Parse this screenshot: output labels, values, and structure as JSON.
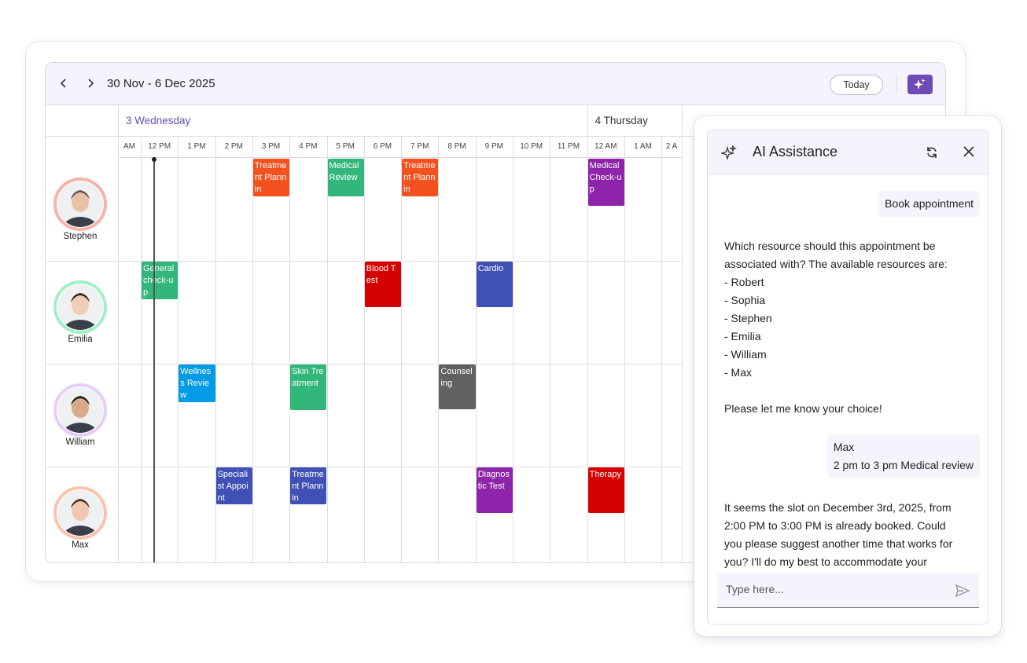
{
  "toolbar": {
    "date_range": "30 Nov - 6 Dec 2025",
    "today_button": "Today"
  },
  "scheduler": {
    "days": [
      "3 Wednesday",
      "4 Thursday"
    ],
    "time_slots": [
      "AM",
      "12 PM",
      "1 PM",
      "2 PM",
      "3 PM",
      "4 PM",
      "5 PM",
      "6 PM",
      "7 PM",
      "8 PM",
      "9 PM",
      "10 PM",
      "11 PM",
      "12 AM",
      "1 AM",
      "2 A"
    ],
    "resources": [
      {
        "name": "Stephen",
        "appointments": [
          {
            "subject": "Treatment Plannin",
            "color": "#f4511e"
          },
          {
            "subject": "Medical Review",
            "color": "#33b679"
          },
          {
            "subject": "Treatment Plannin",
            "color": "#f4511e"
          },
          {
            "subject": "Medical Check-up",
            "color": "#8e24aa"
          }
        ]
      },
      {
        "name": "Emilia",
        "appointments": [
          {
            "subject": "General check-up",
            "color": "#33b679"
          },
          {
            "subject": "Blood Test",
            "color": "#d50000"
          },
          {
            "subject": "Cardio",
            "color": "#3f51b5"
          }
        ]
      },
      {
        "name": "William",
        "appointments": [
          {
            "subject": "Wellness Review",
            "color": "#039be5"
          },
          {
            "subject": "Skin Treatment",
            "color": "#33b679"
          },
          {
            "subject": "Counseling",
            "color": "#616161"
          }
        ]
      },
      {
        "name": "Max",
        "appointments": [
          {
            "subject": "Specialist Appoint",
            "color": "#3f51b5"
          },
          {
            "subject": "Treatment Plannin",
            "color": "#3f51b5"
          },
          {
            "subject": "Diagnostic Test",
            "color": "#8e24aa"
          },
          {
            "subject": "Therapy",
            "color": "#d50000"
          }
        ]
      }
    ]
  },
  "ai_panel": {
    "title": "AI Assistance",
    "messages": [
      {
        "lines": [
          "Book appointment"
        ]
      },
      {
        "text": "Which resource should this appointment be associated with? The available resources are:",
        "items": [
          "- Robert",
          "- Sophia",
          "- Stephen",
          "- Emilia",
          "- William",
          "- Max"
        ],
        "closing": "Please let me know your choice!"
      },
      {
        "lines": [
          "Max",
          "2 pm to 3 pm Medical review"
        ]
      },
      {
        "text": "It seems the slot on December 3rd, 2025, from 2:00 PM to 3:00 PM is already booked. Could you please suggest another time that works for you? I'll do my best to accommodate your"
      }
    ],
    "input_placeholder": "Type here..."
  }
}
